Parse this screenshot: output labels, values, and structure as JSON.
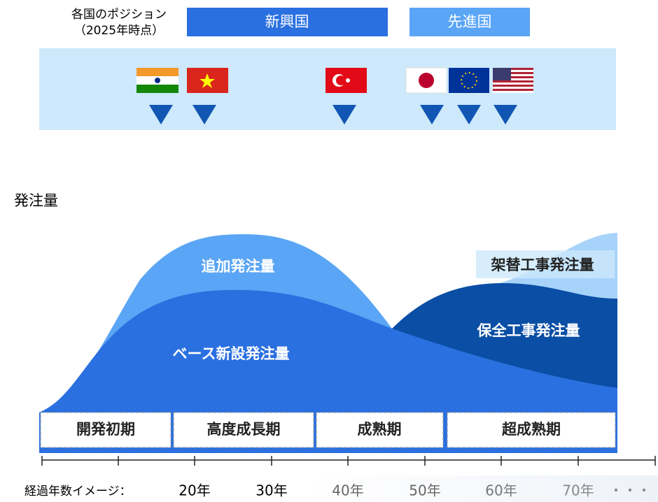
{
  "header": {
    "position_label": [
      "各国のポジション",
      "（2025年時点）"
    ],
    "emerging": "新興国",
    "developed": "先進国"
  },
  "chart": {
    "y_label": "発注量",
    "areas": [
      "追加発注量",
      "ベース新設発注量",
      "保全工事発注量",
      "架替工事発注量"
    ],
    "phases": [
      "開発初期",
      "高度成長期",
      "成熟期",
      "超成熟期"
    ],
    "x_axis": {
      "label": "経過年数イメージ：",
      "ticks": [
        "20年",
        "30年",
        "40年",
        "50年",
        "60年",
        "70年"
      ],
      "more": "・・・"
    }
  }
}
